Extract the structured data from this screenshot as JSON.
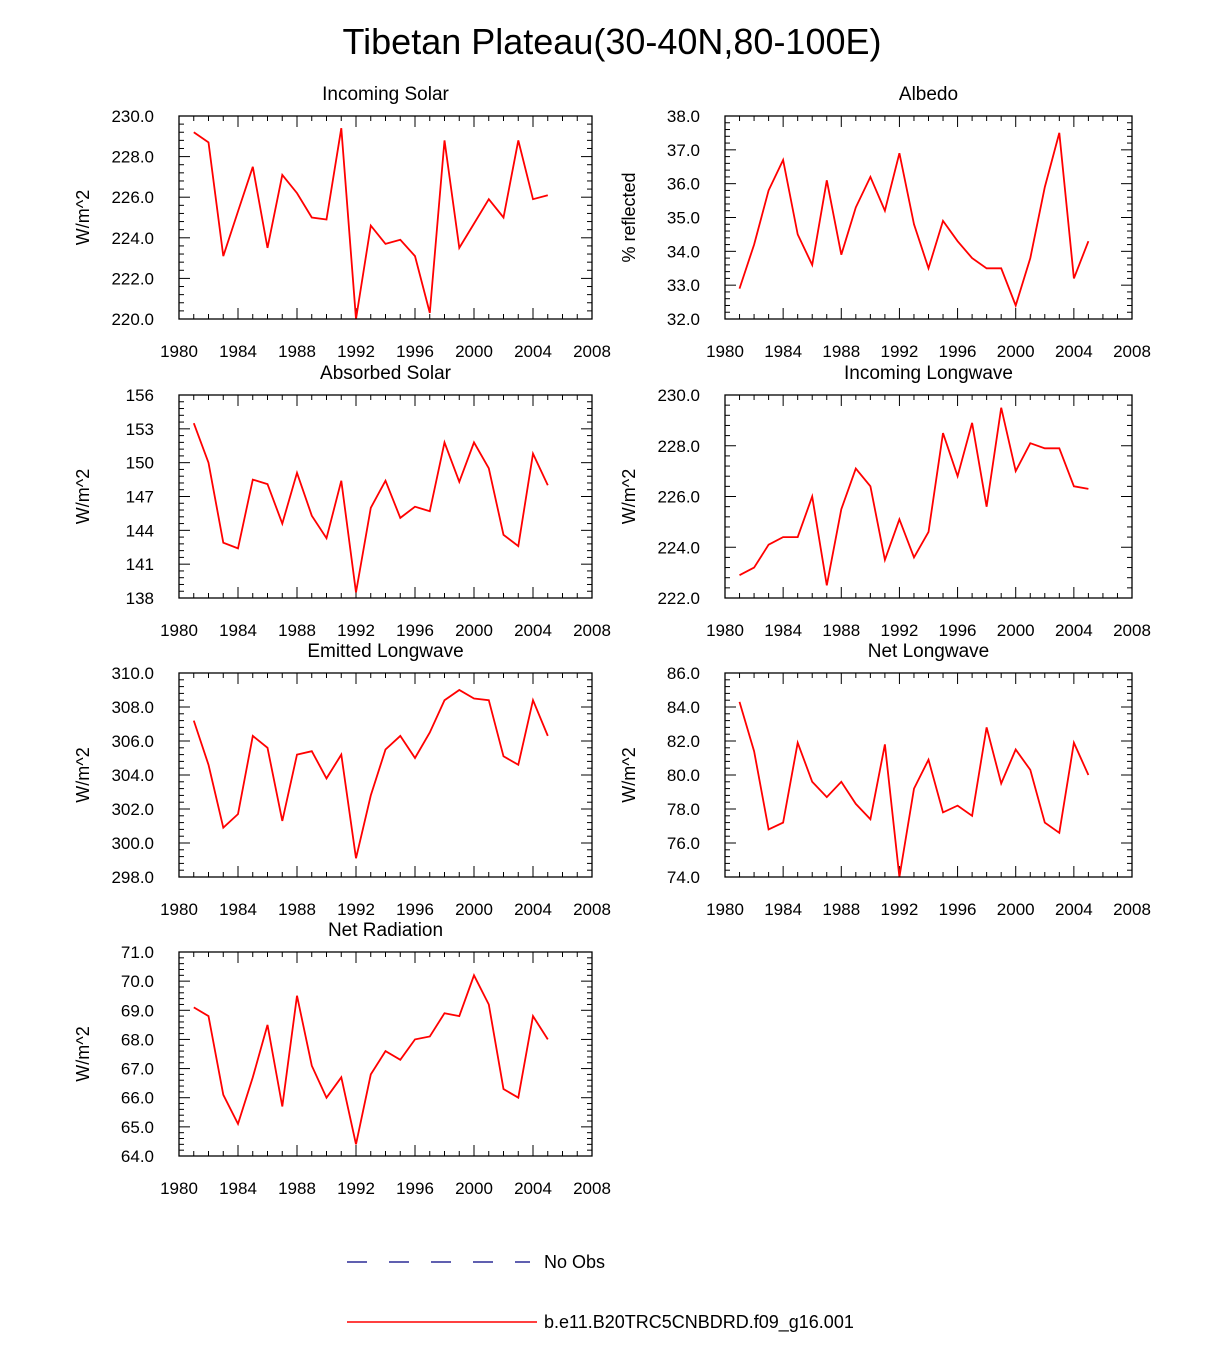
{
  "title": "Tibetan Plateau(30-40N,80-100E)",
  "legend": {
    "entries": [
      {
        "label": "No Obs",
        "color": "#000080",
        "style": "dashed"
      },
      {
        "label": "b.e11.B20TRC5CNBDRD.f09_g16.001",
        "color": "#ff0000",
        "style": "solid"
      }
    ]
  },
  "chart_data": [
    {
      "type": "line",
      "title": "Incoming Solar",
      "ylabel": "W/m^2",
      "xlim": [
        1980,
        2008
      ],
      "ylim": [
        220,
        230
      ],
      "xticks": [
        1980,
        1984,
        1988,
        1992,
        1996,
        2000,
        2004,
        2008
      ],
      "xtick_labels": [
        "1980",
        "1984",
        "1988",
        "1992",
        "1996",
        "2000",
        "2004",
        "2008"
      ],
      "yticks": [
        220,
        222,
        224,
        226,
        228,
        230
      ],
      "ytick_labels": [
        "220.0",
        "222.0",
        "224.0",
        "226.0",
        "228.0",
        "230.0"
      ],
      "series": [
        {
          "name": "b.e11.B20TRC5CNBDRD.f09_g16.001",
          "color": "#ff0000",
          "x": [
            1981,
            1982,
            1983,
            1984,
            1985,
            1986,
            1987,
            1988,
            1989,
            1990,
            1991,
            1992,
            1993,
            1994,
            1995,
            1996,
            1997,
            1998,
            1999,
            2000,
            2001,
            2002,
            2003,
            2004,
            2005
          ],
          "y": [
            229.2,
            228.7,
            223.1,
            225.3,
            227.5,
            223.5,
            227.1,
            226.2,
            225.0,
            224.9,
            229.4,
            220.0,
            224.6,
            223.7,
            223.9,
            223.1,
            220.3,
            228.8,
            223.5,
            224.7,
            225.9,
            225.0,
            228.8,
            225.9,
            226.1
          ]
        }
      ]
    },
    {
      "type": "line",
      "title": "Albedo",
      "ylabel": "% reflected",
      "xlim": [
        1980,
        2008
      ],
      "ylim": [
        32,
        38
      ],
      "xticks": [
        1980,
        1984,
        1988,
        1992,
        1996,
        2000,
        2004,
        2008
      ],
      "xtick_labels": [
        "1980",
        "1984",
        "1988",
        "1992",
        "1996",
        "2000",
        "2004",
        "2008"
      ],
      "yticks": [
        32,
        33,
        34,
        35,
        36,
        37,
        38
      ],
      "ytick_labels": [
        "32.0",
        "33.0",
        "34.0",
        "35.0",
        "36.0",
        "37.0",
        "38.0"
      ],
      "series": [
        {
          "name": "b.e11.B20TRC5CNBDRD.f09_g16.001",
          "color": "#ff0000",
          "x": [
            1981,
            1982,
            1983,
            1984,
            1985,
            1986,
            1987,
            1988,
            1989,
            1990,
            1991,
            1992,
            1993,
            1994,
            1995,
            1996,
            1997,
            1998,
            1999,
            2000,
            2001,
            2002,
            2003,
            2004,
            2005
          ],
          "y": [
            32.9,
            34.2,
            35.8,
            36.7,
            34.5,
            33.6,
            36.1,
            33.9,
            35.3,
            36.2,
            35.2,
            36.9,
            34.8,
            33.5,
            34.9,
            34.3,
            33.8,
            33.5,
            33.5,
            32.4,
            33.8,
            35.9,
            37.5,
            33.2,
            34.3
          ]
        }
      ]
    },
    {
      "type": "line",
      "title": "Absorbed Solar",
      "ylabel": "W/m^2",
      "xlim": [
        1980,
        2008
      ],
      "ylim": [
        138,
        156
      ],
      "xticks": [
        1980,
        1984,
        1988,
        1992,
        1996,
        2000,
        2004,
        2008
      ],
      "xtick_labels": [
        "1980",
        "1984",
        "1988",
        "1992",
        "1996",
        "2000",
        "2004",
        "2008"
      ],
      "yticks": [
        138,
        141,
        144,
        147,
        150,
        153,
        156
      ],
      "ytick_labels": [
        "138",
        "141",
        "144",
        "147",
        "150",
        "153",
        "156"
      ],
      "series": [
        {
          "name": "b.e11.B20TRC5CNBDRD.f09_g16.001",
          "color": "#ff0000",
          "x": [
            1981,
            1982,
            1983,
            1984,
            1985,
            1986,
            1987,
            1988,
            1989,
            1990,
            1991,
            1992,
            1993,
            1994,
            1995,
            1996,
            1997,
            1998,
            1999,
            2000,
            2001,
            2002,
            2003,
            2004,
            2005
          ],
          "y": [
            153.5,
            150.0,
            142.9,
            142.4,
            148.5,
            148.1,
            144.6,
            149.1,
            145.3,
            143.3,
            148.4,
            138.5,
            146.0,
            148.4,
            145.1,
            146.1,
            145.7,
            151.8,
            148.3,
            151.8,
            149.5,
            143.6,
            142.6,
            150.8,
            148.0
          ]
        }
      ]
    },
    {
      "type": "line",
      "title": "Incoming Longwave",
      "ylabel": "W/m^2",
      "xlim": [
        1980,
        2008
      ],
      "ylim": [
        222,
        230
      ],
      "xticks": [
        1980,
        1984,
        1988,
        1992,
        1996,
        2000,
        2004,
        2008
      ],
      "xtick_labels": [
        "1980",
        "1984",
        "1988",
        "1992",
        "1996",
        "2000",
        "2004",
        "2008"
      ],
      "yticks": [
        222,
        224,
        226,
        228,
        230
      ],
      "ytick_labels": [
        "222.0",
        "224.0",
        "226.0",
        "228.0",
        "230.0"
      ],
      "series": [
        {
          "name": "b.e11.B20TRC5CNBDRD.f09_g16.001",
          "color": "#ff0000",
          "x": [
            1981,
            1982,
            1983,
            1984,
            1985,
            1986,
            1987,
            1988,
            1989,
            1990,
            1991,
            1992,
            1993,
            1994,
            1995,
            1996,
            1997,
            1998,
            1999,
            2000,
            2001,
            2002,
            2003,
            2004,
            2005
          ],
          "y": [
            222.9,
            223.2,
            224.1,
            224.4,
            224.4,
            226.0,
            222.5,
            225.5,
            227.1,
            226.4,
            223.5,
            225.1,
            223.6,
            224.6,
            228.5,
            226.8,
            228.9,
            225.6,
            229.5,
            227.0,
            228.1,
            227.9,
            227.9,
            226.4,
            226.3
          ]
        }
      ]
    },
    {
      "type": "line",
      "title": "Emitted Longwave",
      "ylabel": "W/m^2",
      "xlim": [
        1980,
        2008
      ],
      "ylim": [
        298,
        310
      ],
      "xticks": [
        1980,
        1984,
        1988,
        1992,
        1996,
        2000,
        2004,
        2008
      ],
      "xtick_labels": [
        "1980",
        "1984",
        "1988",
        "1992",
        "1996",
        "2000",
        "2004",
        "2008"
      ],
      "yticks": [
        298,
        300,
        302,
        304,
        306,
        308,
        310
      ],
      "ytick_labels": [
        "298.0",
        "300.0",
        "302.0",
        "304.0",
        "306.0",
        "308.0",
        "310.0"
      ],
      "series": [
        {
          "name": "b.e11.B20TRC5CNBDRD.f09_g16.001",
          "color": "#ff0000",
          "x": [
            1981,
            1982,
            1983,
            1984,
            1985,
            1986,
            1987,
            1988,
            1989,
            1990,
            1991,
            1992,
            1993,
            1994,
            1995,
            1996,
            1997,
            1998,
            1999,
            2000,
            2001,
            2002,
            2003,
            2004,
            2005
          ],
          "y": [
            307.2,
            304.6,
            300.9,
            301.7,
            306.3,
            305.6,
            301.3,
            305.2,
            305.4,
            303.8,
            305.2,
            299.1,
            302.8,
            305.5,
            306.3,
            305.0,
            306.5,
            308.4,
            309.0,
            308.5,
            308.4,
            305.1,
            304.6,
            308.4,
            306.3
          ]
        }
      ]
    },
    {
      "type": "line",
      "title": "Net Longwave",
      "ylabel": "W/m^2",
      "xlim": [
        1980,
        2008
      ],
      "ylim": [
        74,
        86
      ],
      "xticks": [
        1980,
        1984,
        1988,
        1992,
        1996,
        2000,
        2004,
        2008
      ],
      "xtick_labels": [
        "1980",
        "1984",
        "1988",
        "1992",
        "1996",
        "2000",
        "2004",
        "2008"
      ],
      "yticks": [
        74,
        76,
        78,
        80,
        82,
        84,
        86
      ],
      "ytick_labels": [
        "74.0",
        "76.0",
        "78.0",
        "80.0",
        "82.0",
        "84.0",
        "86.0"
      ],
      "series": [
        {
          "name": "b.e11.B20TRC5CNBDRD.f09_g16.001",
          "color": "#ff0000",
          "x": [
            1981,
            1982,
            1983,
            1984,
            1985,
            1986,
            1987,
            1988,
            1989,
            1990,
            1991,
            1992,
            1993,
            1994,
            1995,
            1996,
            1997,
            1998,
            1999,
            2000,
            2001,
            2002,
            2003,
            2004,
            2005
          ],
          "y": [
            84.3,
            81.4,
            76.8,
            77.2,
            81.9,
            79.6,
            78.7,
            79.6,
            78.3,
            77.4,
            81.8,
            74.0,
            79.2,
            80.9,
            77.8,
            78.2,
            77.6,
            82.8,
            79.5,
            81.5,
            80.3,
            77.2,
            76.6,
            81.9,
            80.0
          ]
        }
      ]
    },
    {
      "type": "line",
      "title": "Net Radiation",
      "ylabel": "W/m^2",
      "xlim": [
        1980,
        2008
      ],
      "ylim": [
        64,
        71
      ],
      "xticks": [
        1980,
        1984,
        1988,
        1992,
        1996,
        2000,
        2004,
        2008
      ],
      "xtick_labels": [
        "1980",
        "1984",
        "1988",
        "1992",
        "1996",
        "2000",
        "2004",
        "2008"
      ],
      "yticks": [
        64,
        65,
        66,
        67,
        68,
        69,
        70,
        71
      ],
      "ytick_labels": [
        "64.0",
        "65.0",
        "66.0",
        "67.0",
        "68.0",
        "69.0",
        "70.0",
        "71.0"
      ],
      "series": [
        {
          "name": "b.e11.B20TRC5CNBDRD.f09_g16.001",
          "color": "#ff0000",
          "x": [
            1981,
            1982,
            1983,
            1984,
            1985,
            1986,
            1987,
            1988,
            1989,
            1990,
            1991,
            1992,
            1993,
            1994,
            1995,
            1996,
            1997,
            1998,
            1999,
            2000,
            2001,
            2002,
            2003,
            2004,
            2005
          ],
          "y": [
            69.1,
            68.8,
            66.1,
            65.1,
            66.7,
            68.5,
            65.7,
            69.5,
            67.1,
            66.0,
            66.7,
            64.4,
            66.8,
            67.6,
            67.3,
            68.0,
            68.1,
            68.9,
            68.8,
            70.2,
            69.2,
            66.3,
            66.0,
            68.8,
            68.0
          ]
        }
      ]
    }
  ]
}
